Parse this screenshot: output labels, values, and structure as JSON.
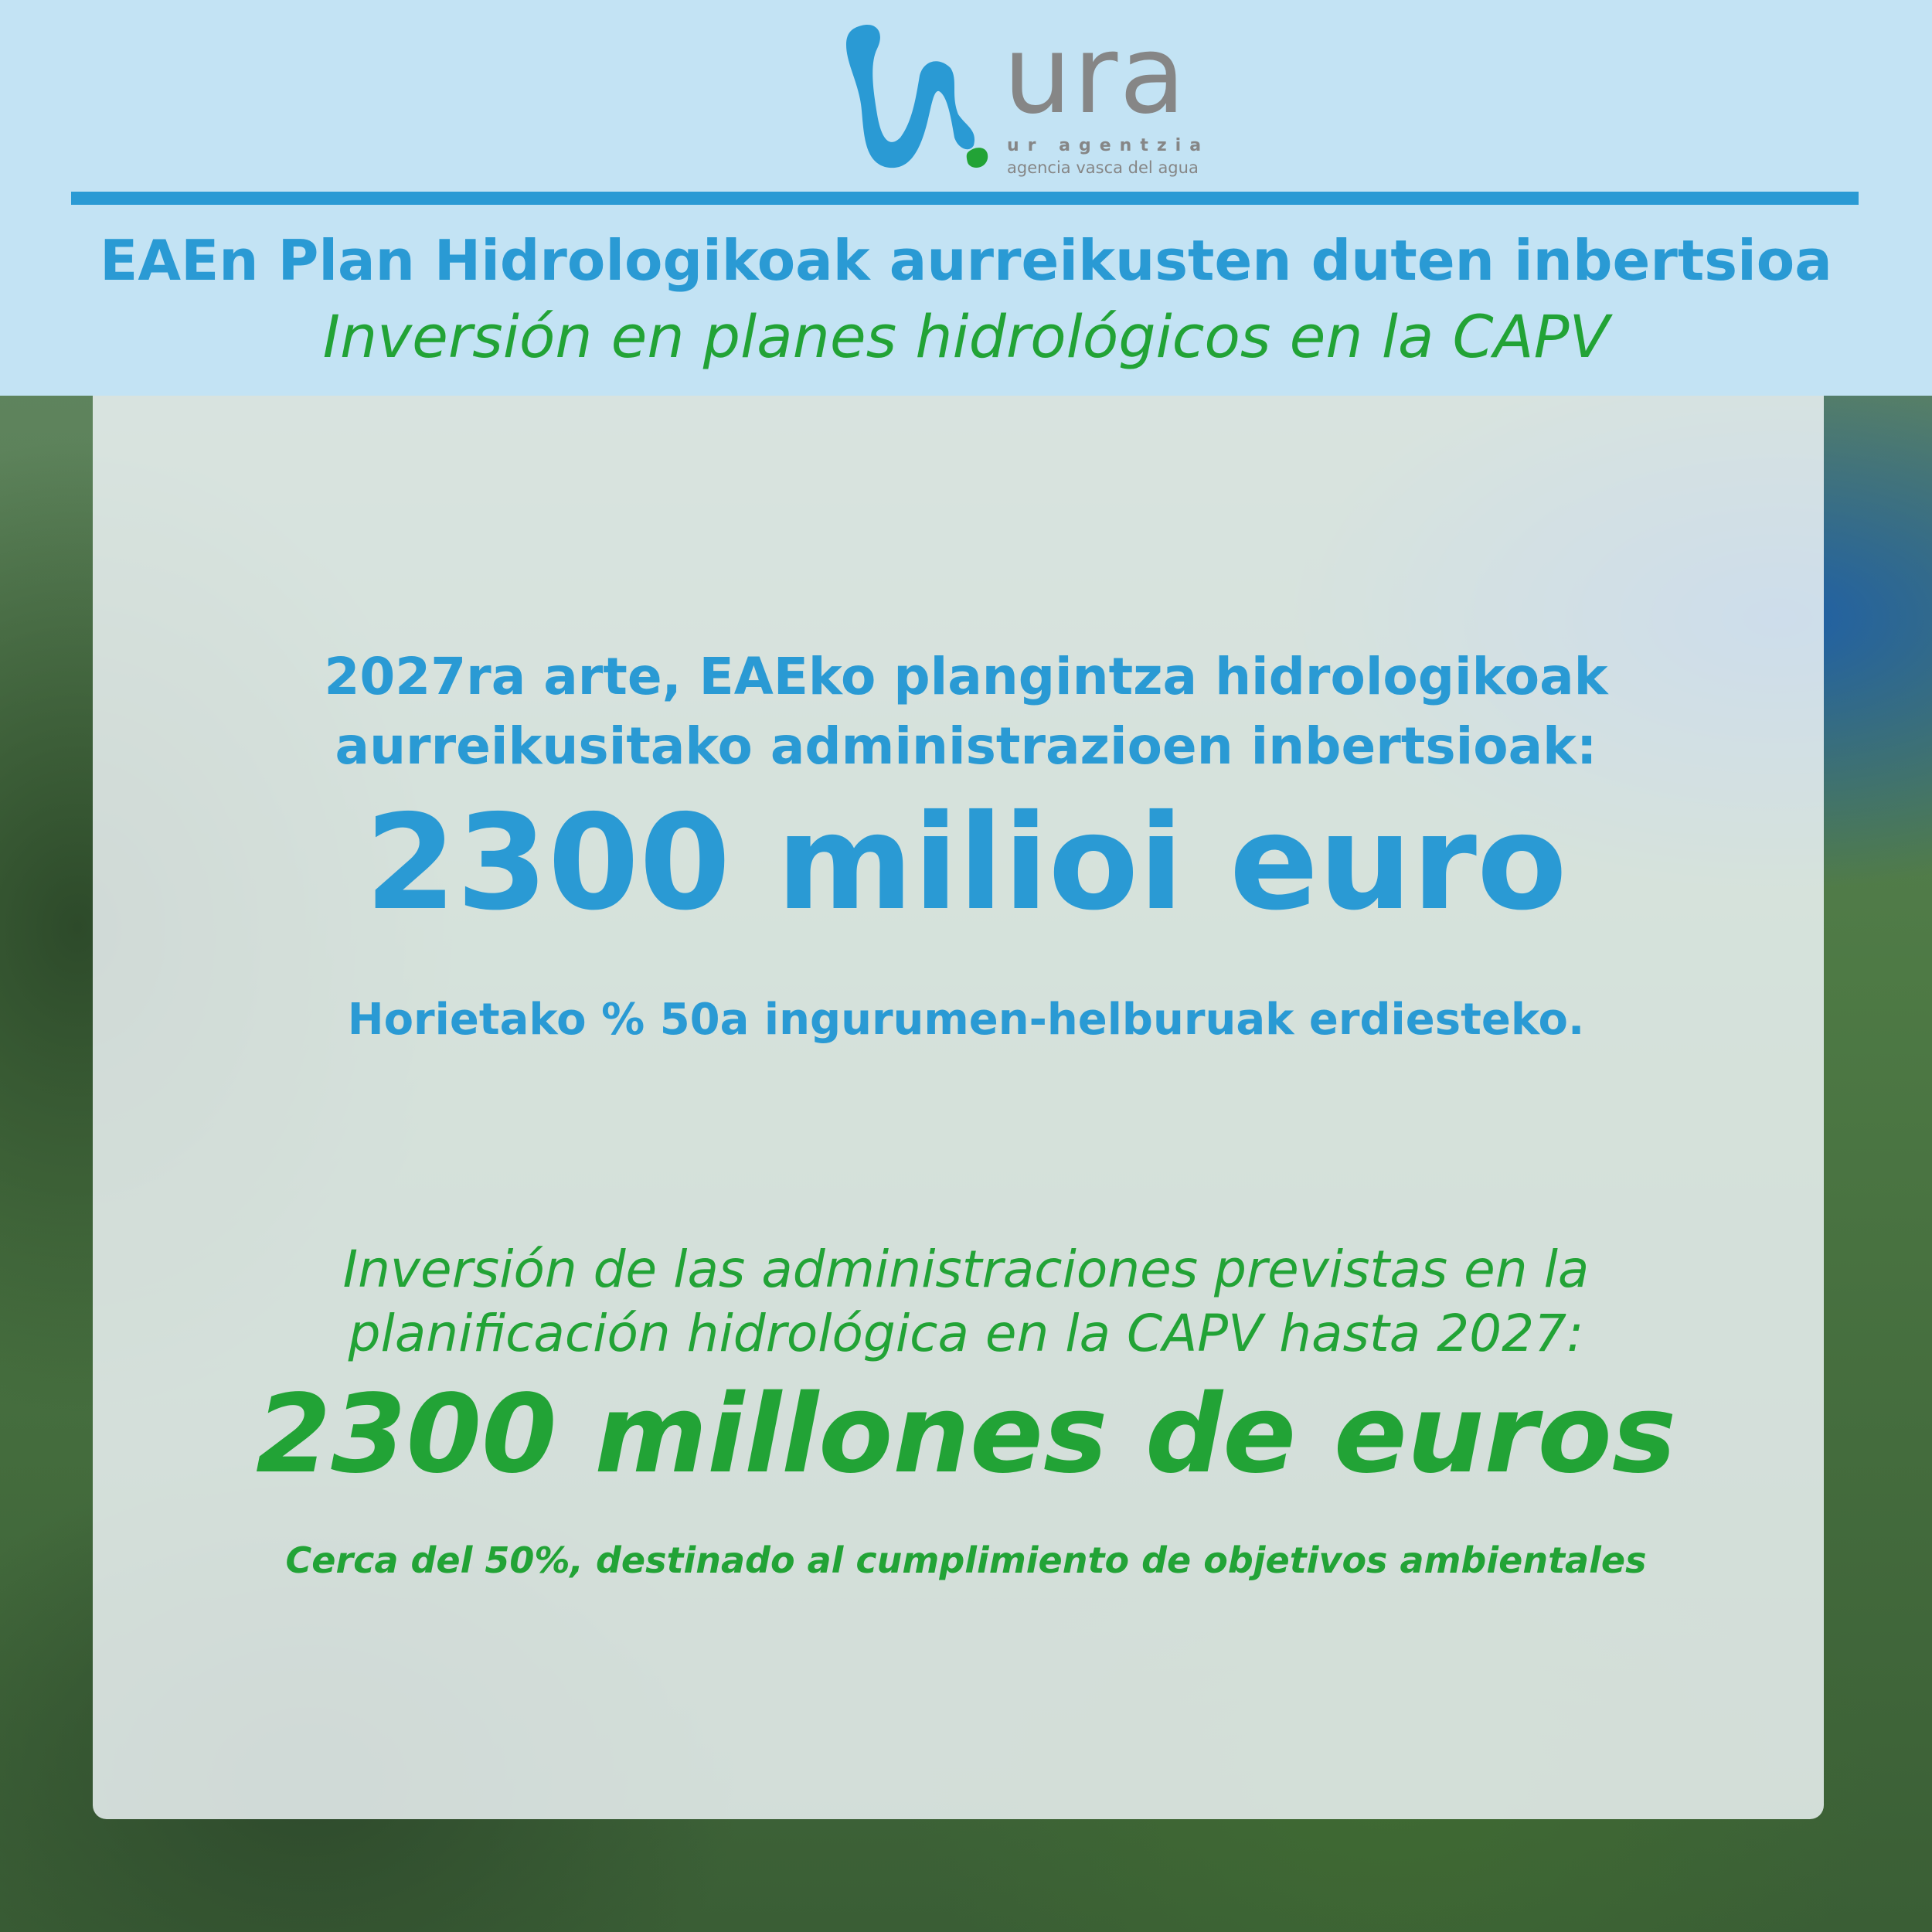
{
  "logo": {
    "word": "ura",
    "subtitle_eu": "ur agentzia",
    "subtitle_es": "agencia vasca del agua",
    "colors": {
      "drop": "#2a9ad4",
      "dot": "#22a336",
      "text": "#868686"
    }
  },
  "header": {
    "title_eu": "EAEn Plan Hidrologikoak aurreikusten duten inbertsioa",
    "title_es": "Inversión en planes hidrológicos en la CAPV"
  },
  "basque": {
    "intro_line1": "2027ra arte,  EAEko plangintza hidrologikoak",
    "intro_line2": "aurreikusitako administrazioen inbertsioak:",
    "amount": "2300 milioi euro",
    "note": "Horietako % 50a ingurumen-helburuak erdiesteko."
  },
  "spanish": {
    "intro_line1": "Inversión de las administraciones previstas en la",
    "intro_line2": "planificación hidrológica en la CAPV hasta 2027:",
    "amount": "2300 millones de euros",
    "note": "Cerca del 50%, destinado al cumplimiento de objetivos ambientales"
  },
  "colors": {
    "blue": "#2a9ad4",
    "green": "#22a336",
    "header_bg": "#c3e3f4"
  }
}
